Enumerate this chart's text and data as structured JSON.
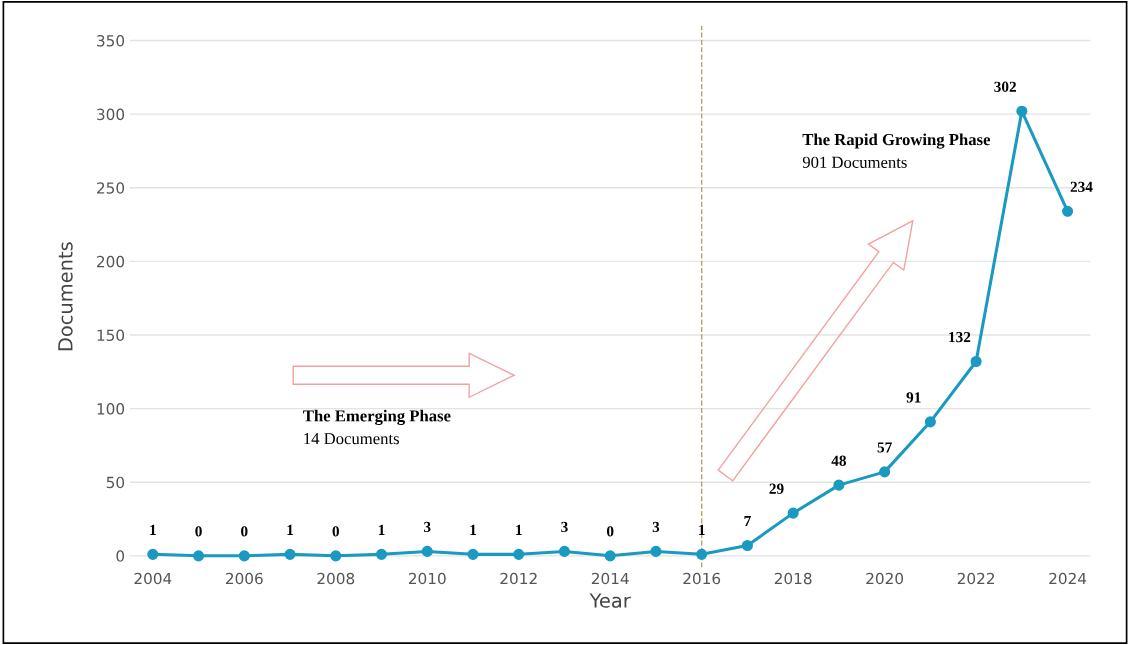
{
  "chart_data": {
    "type": "line",
    "xlabel": "Year",
    "ylabel": "Documents",
    "x": [
      2004,
      2005,
      2006,
      2007,
      2008,
      2009,
      2010,
      2011,
      2012,
      2013,
      2014,
      2015,
      2016,
      2017,
      2018,
      2019,
      2020,
      2021,
      2022,
      2023,
      2024
    ],
    "series": [
      {
        "color": "#1a9ac0",
        "values": [
          1,
          0,
          0,
          1,
          0,
          1,
          3,
          1,
          1,
          3,
          0,
          3,
          1,
          7,
          29,
          48,
          57,
          91,
          132,
          302,
          234
        ]
      }
    ],
    "xlim": [
      2003.5,
      2024.5
    ],
    "xticks": [
      2004,
      2006,
      2008,
      2010,
      2012,
      2014,
      2016,
      2018,
      2020,
      2022,
      2024
    ],
    "ylim": [
      -8,
      360
    ],
    "yticks": [
      0,
      50,
      100,
      150,
      200,
      250,
      300,
      350
    ],
    "grid": "y",
    "marker": "circle",
    "line_style": "solid",
    "data_labels": true,
    "ref_lines": [
      {
        "axis": "x",
        "value": 2016,
        "color": "#b5a46a",
        "line_style": "dashed"
      }
    ],
    "annotations": [
      "The Emerging Phase",
      "14 Documents",
      "The Rapid Growing Phase",
      "901 Documents"
    ]
  }
}
